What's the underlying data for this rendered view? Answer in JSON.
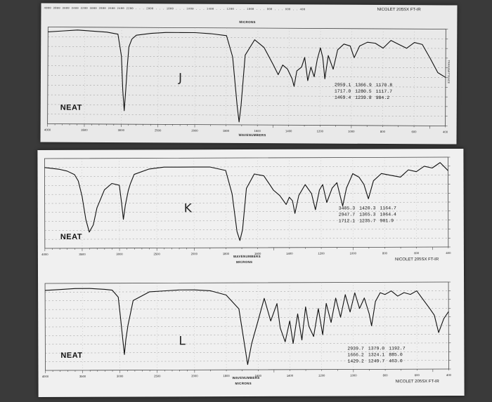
{
  "chart_data": [
    {
      "type": "line",
      "title": "",
      "xlabel": "WAVENUMBERS",
      "ylabel": "",
      "x_unit": "cm-1",
      "xlim": [
        4000,
        400
      ],
      "ylim": [
        0,
        100
      ],
      "sample_letter": "J",
      "sample_state": "NEAT",
      "micron_label": "MICRONS",
      "instrument": "NICOLET 205SX FT-IR",
      "peak_table": [
        [
          "2959.1",
          "1366.9",
          "1170.8"
        ],
        [
          "1717.0",
          "1280.5",
          "1117.7"
        ],
        [
          "1469.4",
          "1239.8",
          "984.2"
        ]
      ],
      "series": [
        {
          "x": [
            4000,
            3800,
            3600,
            3400,
            3200,
            3050,
            3000,
            2980,
            2959,
            2940,
            2920,
            2900,
            2860,
            2800,
            2600,
            2400,
            2200,
            2000,
            1900,
            1800,
            1760,
            1730,
            1717,
            1705,
            1680,
            1620,
            1560,
            1500,
            1469,
            1440,
            1410,
            1380,
            1367,
            1350,
            1320,
            1300,
            1280,
            1260,
            1239,
            1220,
            1200,
            1185,
            1171,
            1150,
            1118,
            1090,
            1050,
            1010,
            984,
            950,
            900,
            850,
            800,
            750,
            700,
            650,
            600,
            550,
            500,
            450,
            400
          ],
          "y": [
            95,
            96,
            97,
            96,
            95,
            93,
            70,
            35,
            14,
            35,
            60,
            80,
            88,
            92,
            94,
            95,
            95,
            95,
            94,
            92,
            70,
            20,
            3,
            20,
            72,
            88,
            80,
            62,
            52,
            62,
            58,
            48,
            40,
            56,
            60,
            70,
            46,
            60,
            50,
            68,
            80,
            70,
            48,
            72,
            58,
            78,
            84,
            82,
            70,
            82,
            86,
            85,
            80,
            88,
            84,
            80,
            86,
            84,
            70,
            55,
            50
          ]
        }
      ]
    },
    {
      "type": "line",
      "title": "",
      "xlabel": "WAVENUMBERS",
      "ylabel": "",
      "x_unit": "cm-1",
      "xlim": [
        4000,
        400
      ],
      "ylim": [
        0,
        100
      ],
      "sample_letter": "K",
      "sample_state": "NEAT",
      "micron_label": "MICRONS",
      "instrument": "NICOLET 205SX FT-IR",
      "peak_table": [
        [
          "3405.3",
          "1420.3",
          "1164.7"
        ],
        [
          "2947.7",
          "1365.3",
          "1064.4"
        ],
        [
          "1712.1",
          "1235.7",
          "901.9"
        ]
      ],
      "series": [
        {
          "x": [
            4000,
            3900,
            3800,
            3700,
            3600,
            3550,
            3500,
            3450,
            3405,
            3350,
            3300,
            3200,
            3100,
            3000,
            2970,
            2947,
            2920,
            2880,
            2850,
            2800,
            2600,
            2400,
            2200,
            2000,
            1900,
            1800,
            1760,
            1730,
            1712,
            1695,
            1670,
            1620,
            1560,
            1500,
            1460,
            1420,
            1400,
            1380,
            1365,
            1340,
            1300,
            1260,
            1236,
            1210,
            1190,
            1164,
            1130,
            1100,
            1064,
            1040,
            1000,
            960,
            930,
            902,
            870,
            820,
            760,
            700,
            650,
            600,
            550,
            500,
            450,
            400
          ],
          "y": [
            90,
            89,
            88,
            86,
            82,
            75,
            58,
            32,
            18,
            26,
            45,
            65,
            72,
            70,
            50,
            32,
            48,
            64,
            72,
            82,
            88,
            90,
            90,
            90,
            90,
            86,
            60,
            18,
            8,
            20,
            66,
            82,
            80,
            64,
            58,
            48,
            56,
            52,
            38,
            58,
            70,
            60,
            42,
            64,
            70,
            50,
            66,
            72,
            46,
            66,
            82,
            78,
            70,
            54,
            74,
            82,
            80,
            78,
            86,
            84,
            90,
            88,
            94,
            85
          ]
        }
      ]
    },
    {
      "type": "line",
      "title": "",
      "xlabel": "WAVENUMBERS",
      "ylabel": "",
      "x_unit": "cm-1",
      "xlim": [
        4000,
        400
      ],
      "ylim": [
        0,
        100
      ],
      "sample_letter": "L",
      "sample_state": "NEAT",
      "micron_label": "MICRONS",
      "instrument": "NICOLET 205SX FT-IR",
      "peak_table": [
        [
          "2939.7",
          "1379.0",
          "1192.7"
        ],
        [
          "1666.2",
          "1324.1",
          "885.0"
        ],
        [
          "1429.2",
          "1249.7",
          "463.0"
        ]
      ],
      "series": [
        {
          "x": [
            4000,
            3800,
            3600,
            3400,
            3200,
            3100,
            3020,
            2990,
            2960,
            2940,
            2920,
            2890,
            2860,
            2820,
            2600,
            2400,
            2200,
            2000,
            1900,
            1800,
            1720,
            1690,
            1666,
            1640,
            1600,
            1560,
            1520,
            1480,
            1460,
            1429,
            1400,
            1379,
            1350,
            1324,
            1300,
            1280,
            1250,
            1220,
            1193,
            1170,
            1140,
            1110,
            1080,
            1050,
            1020,
            990,
            960,
            930,
            900,
            885,
            860,
            830,
            800,
            760,
            720,
            680,
            640,
            600,
            560,
            520,
            490,
            463,
            430,
            400
          ],
          "y": [
            92,
            93,
            94,
            94,
            93,
            92,
            84,
            60,
            35,
            18,
            35,
            52,
            64,
            80,
            90,
            91,
            92,
            92,
            91,
            86,
            70,
            35,
            6,
            30,
            56,
            82,
            56,
            76,
            48,
            32,
            56,
            30,
            64,
            34,
            72,
            50,
            38,
            70,
            40,
            76,
            54,
            82,
            60,
            86,
            66,
            88,
            70,
            82,
            64,
            50,
            78,
            88,
            86,
            90,
            84,
            88,
            86,
            90,
            80,
            70,
            62,
            42,
            58,
            66
          ]
        }
      ]
    }
  ]
}
